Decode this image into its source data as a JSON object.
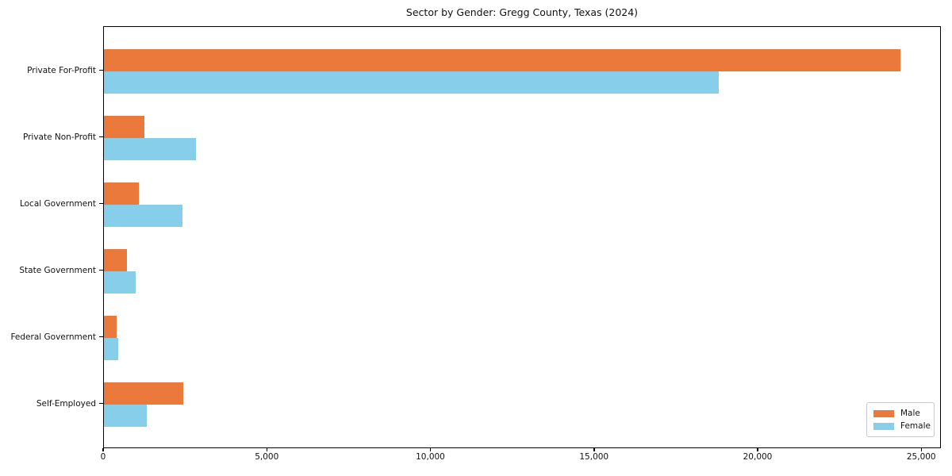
{
  "title": "Sector by Gender: Gregg County, Texas (2024)",
  "chart_data": {
    "type": "bar",
    "orientation": "horizontal",
    "title": "Sector by Gender: Gregg County, Texas (2024)",
    "categories": [
      "Private For-Profit",
      "Private Non-Profit",
      "Local Government",
      "State Government",
      "Federal Government",
      "Self-Employed"
    ],
    "series": [
      {
        "name": "Male",
        "color": "#ec793c",
        "values": [
          24380,
          1240,
          1060,
          715,
          400,
          2440
        ]
      },
      {
        "name": "Female",
        "color": "#87ceeb",
        "values": [
          18820,
          2820,
          2400,
          975,
          440,
          1300
        ]
      }
    ],
    "xlabel": "",
    "ylabel": "",
    "xlim": [
      0,
      25600
    ],
    "x_ticks": [
      {
        "value": 0,
        "label": "0"
      },
      {
        "value": 5000,
        "label": "5,000"
      },
      {
        "value": 10000,
        "label": "10,000"
      },
      {
        "value": 15000,
        "label": "15,000"
      },
      {
        "value": 20000,
        "label": "20,000"
      },
      {
        "value": 25000,
        "label": "25,000"
      }
    ],
    "grid": false,
    "legend_position": "lower right"
  },
  "legend": {
    "items": [
      {
        "label": "Male",
        "color": "#ec793c"
      },
      {
        "label": "Female",
        "color": "#87ceeb"
      }
    ]
  }
}
